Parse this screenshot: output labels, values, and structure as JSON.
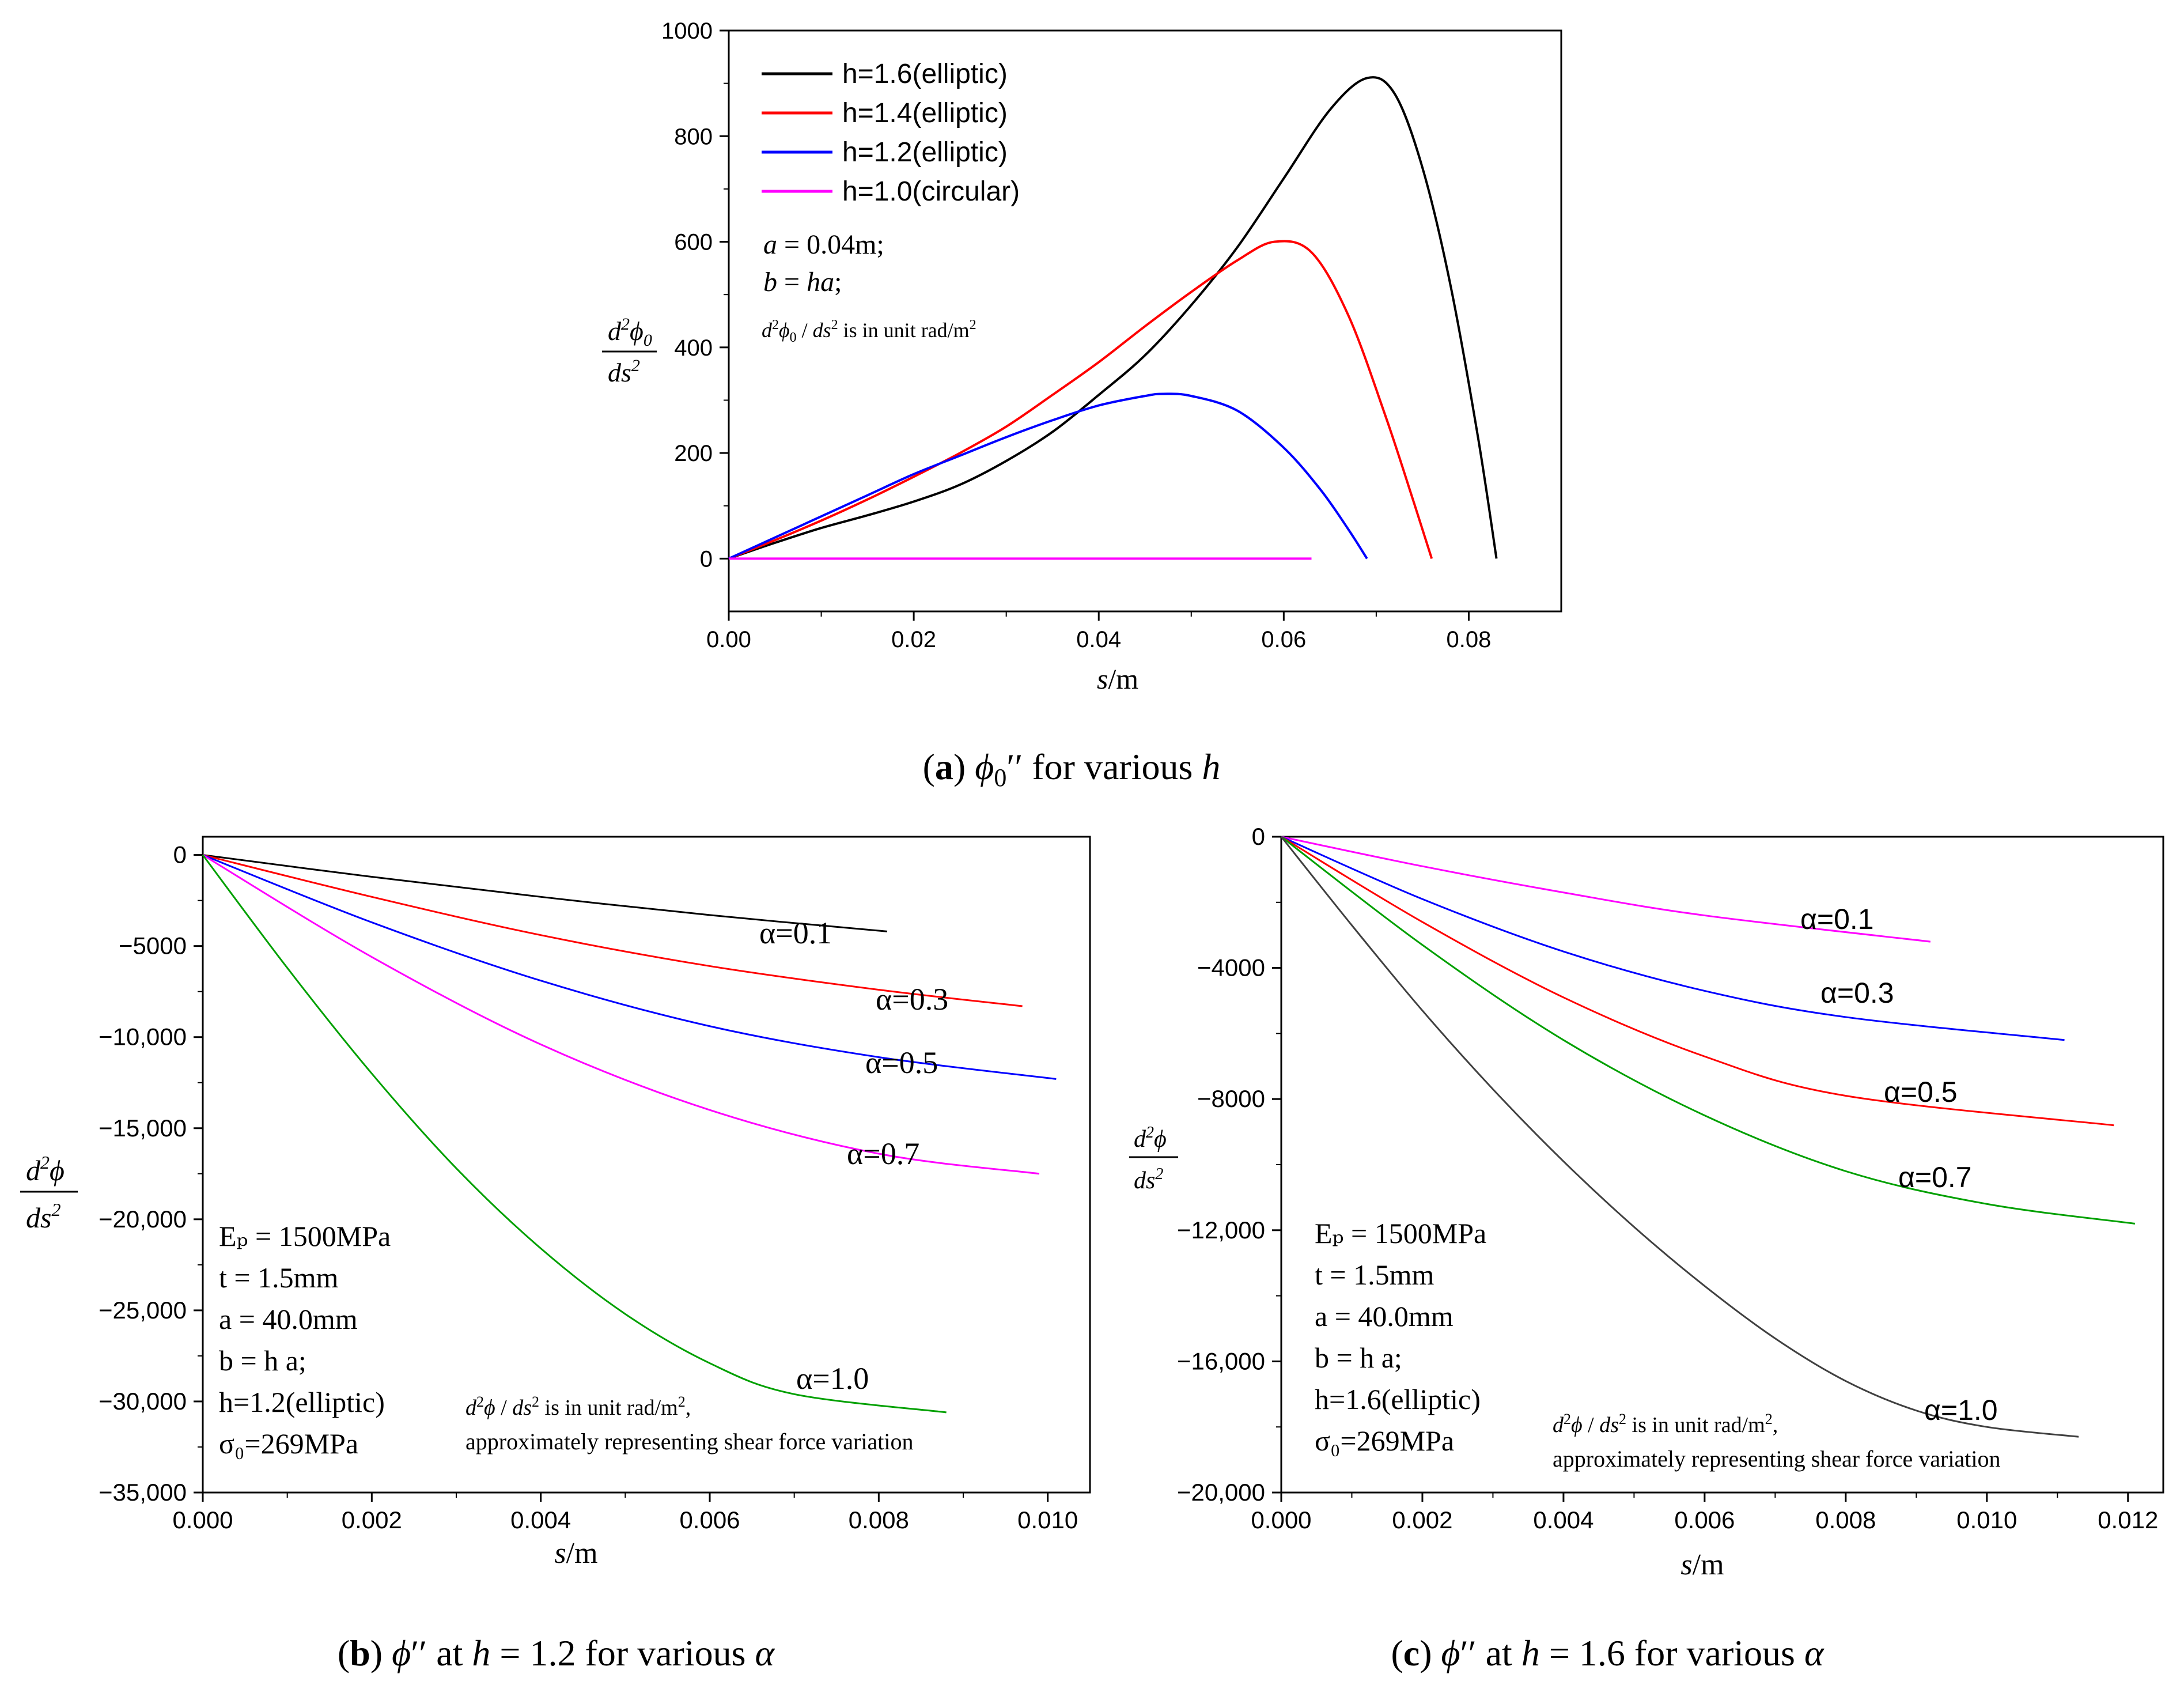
{
  "figure": {
    "captions": {
      "a": {
        "label": "a",
        "symbol": "ϕ₀′′",
        "text": "for various",
        "var": "h"
      },
      "b": {
        "label": "b",
        "symbol": "ϕ′′",
        "text_before": "at",
        "var": "h",
        "text_mid": "= 1.2 for various",
        "var2": "α"
      },
      "c": {
        "label": "c",
        "symbol": "ϕ′′",
        "text_before": "at",
        "var": "h",
        "text_mid": "= 1.6 for various",
        "var2": "α"
      }
    }
  },
  "chart_data": [
    {
      "id": "a",
      "type": "line",
      "xlabel": "s/m",
      "ylabel": "d²ϕ₀/ds²",
      "xlim": [
        0.0,
        0.09
      ],
      "ylim": [
        -100,
        1000
      ],
      "xticks": [
        0.0,
        0.02,
        0.04,
        0.06,
        0.08
      ],
      "xtick_labels": [
        "0.00",
        "0.02",
        "0.04",
        "0.06",
        "0.08"
      ],
      "yticks": [
        0,
        200,
        400,
        600,
        800,
        1000
      ],
      "ytick_labels": [
        "0",
        "200",
        "400",
        "600",
        "800",
        "1000"
      ],
      "legend_position": "top-left",
      "series": [
        {
          "name": "h=1.6(elliptic)",
          "color": "#000000",
          "x": [
            0,
            0.005,
            0.01,
            0.015,
            0.02,
            0.025,
            0.03,
            0.035,
            0.04,
            0.045,
            0.05,
            0.055,
            0.06,
            0.065,
            0.069,
            0.072,
            0.075,
            0.078,
            0.081,
            0.083
          ],
          "y": [
            0,
            30,
            58,
            82,
            108,
            140,
            185,
            240,
            310,
            385,
            480,
            590,
            720,
            850,
            910,
            880,
            740,
            520,
            230,
            0
          ]
        },
        {
          "name": "h=1.4(elliptic)",
          "color": "#ff0000",
          "x": [
            0,
            0.005,
            0.01,
            0.015,
            0.02,
            0.025,
            0.03,
            0.035,
            0.04,
            0.045,
            0.05,
            0.055,
            0.059,
            0.063,
            0.067,
            0.071,
            0.074,
            0.076
          ],
          "y": [
            0,
            35,
            72,
            112,
            155,
            200,
            250,
            310,
            372,
            440,
            505,
            565,
            600,
            580,
            460,
            270,
            110,
            0
          ]
        },
        {
          "name": "h=1.2(elliptic)",
          "color": "#0000ff",
          "x": [
            0,
            0.005,
            0.01,
            0.015,
            0.02,
            0.025,
            0.03,
            0.035,
            0.04,
            0.045,
            0.047,
            0.05,
            0.055,
            0.06,
            0.064,
            0.067,
            0.069
          ],
          "y": [
            0,
            40,
            80,
            120,
            160,
            195,
            230,
            262,
            290,
            308,
            312,
            308,
            280,
            210,
            130,
            55,
            0
          ]
        },
        {
          "name": "h=1.0(circular)",
          "color": "#ff00ff",
          "x": [
            0,
            0.063
          ],
          "y": [
            0,
            0
          ]
        }
      ],
      "annotations": {
        "line1": "a = 0.04m;",
        "line2": "b = ha;",
        "unit_note_sym": "d²ϕ₀ / ds²",
        "unit_note_text": "is in unit rad/m²"
      }
    },
    {
      "id": "b",
      "type": "line",
      "xlabel": "s/m",
      "ylabel": "d²ϕ/ds²",
      "xlim": [
        0.0,
        0.0105
      ],
      "ylim": [
        -35000,
        1000
      ],
      "xticks": [
        0.0,
        0.002,
        0.004,
        0.006,
        0.008,
        0.01
      ],
      "xtick_labels": [
        "0.000",
        "0.002",
        "0.004",
        "0.006",
        "0.008",
        "0.010"
      ],
      "yticks": [
        0,
        -5000,
        -10000,
        -15000,
        -20000,
        -25000,
        -30000,
        -35000
      ],
      "ytick_labels": [
        "0",
        "-5000",
        "-10,000",
        "-15,000",
        "-20,000",
        "-25,000",
        "-30,000",
        "-35,000"
      ],
      "series": [
        {
          "name": "α=0.1",
          "color": "#000000",
          "x": [
            0,
            0.002,
            0.004,
            0.006,
            0.0081
          ],
          "y": [
            0,
            -1200,
            -2300,
            -3300,
            -4200
          ]
        },
        {
          "name": "α=0.3",
          "color": "#ff0000",
          "x": [
            0,
            0.002,
            0.004,
            0.006,
            0.008,
            0.0097
          ],
          "y": [
            0,
            -2300,
            -4400,
            -6100,
            -7400,
            -8300
          ]
        },
        {
          "name": "α=0.5",
          "color": "#0000ff",
          "x": [
            0,
            0.002,
            0.004,
            0.006,
            0.008,
            0.0101
          ],
          "y": [
            0,
            -3700,
            -6900,
            -9400,
            -11100,
            -12300
          ]
        },
        {
          "name": "α=0.7",
          "color": "#ff00ff",
          "x": [
            0,
            0.002,
            0.004,
            0.006,
            0.008,
            0.0099
          ],
          "y": [
            0,
            -5600,
            -10400,
            -14000,
            -16400,
            -17500
          ]
        },
        {
          "name": "α=1.0",
          "color": "#00a000",
          "x": [
            0,
            0.001,
            0.002,
            0.003,
            0.004,
            0.005,
            0.006,
            0.007,
            0.0088
          ],
          "y": [
            0,
            -6200,
            -12000,
            -17200,
            -21600,
            -25200,
            -27900,
            -29600,
            -30600
          ]
        }
      ],
      "annotations": {
        "params": [
          "Eₚ = 1500MPa",
          "t = 1.5mm",
          "a = 40.0mm",
          "b = h a;",
          "h=1.2(elliptic)",
          "σ₀=269MPa"
        ],
        "unit_note_line1_sym": "d²ϕ / ds²",
        "unit_note_line1_text": "is in unit rad/m²,",
        "unit_note_line2": "approximately representing shear force variation"
      }
    },
    {
      "id": "c",
      "type": "line",
      "xlabel": "s/m",
      "ylabel": "d²ϕ/ds²",
      "xlim": [
        0.0,
        0.0125
      ],
      "ylim": [
        -20000,
        0
      ],
      "xticks": [
        0.0,
        0.002,
        0.004,
        0.006,
        0.008,
        0.01,
        0.012
      ],
      "xtick_labels": [
        "0.000",
        "0.002",
        "0.004",
        "0.006",
        "0.008",
        "0.010",
        "0.012"
      ],
      "yticks": [
        0,
        -4000,
        -8000,
        -12000,
        -16000,
        -20000
      ],
      "ytick_labels": [
        "0",
        "-4000",
        "-8000",
        "-12,000",
        "-16,000",
        "-20,000"
      ],
      "series": [
        {
          "name": "α=0.1",
          "color": "#ff00ff",
          "x": [
            0,
            0.002,
            0.004,
            0.006,
            0.0092
          ],
          "y": [
            0,
            -900,
            -1700,
            -2400,
            -3200
          ]
        },
        {
          "name": "α=0.3",
          "color": "#0000ff",
          "x": [
            0,
            0.002,
            0.004,
            0.006,
            0.008,
            0.0111
          ],
          "y": [
            0,
            -1900,
            -3500,
            -4700,
            -5500,
            -6200
          ]
        },
        {
          "name": "α=0.5",
          "color": "#ff0000",
          "x": [
            0,
            0.002,
            0.004,
            0.006,
            0.008,
            0.0118
          ],
          "y": [
            0,
            -2600,
            -4900,
            -6700,
            -7900,
            -8800
          ]
        },
        {
          "name": "α=0.7",
          "color": "#00a000",
          "x": [
            0,
            0.002,
            0.004,
            0.006,
            0.008,
            0.01,
            0.0121
          ],
          "y": [
            0,
            -3300,
            -6200,
            -8500,
            -10200,
            -11200,
            -11800
          ]
        },
        {
          "name": "α=1.0",
          "color": "#404040",
          "x": [
            0,
            0.001,
            0.002,
            0.003,
            0.004,
            0.005,
            0.006,
            0.007,
            0.008,
            0.009,
            0.01,
            0.0113
          ],
          "y": [
            0,
            -2700,
            -5300,
            -7700,
            -9900,
            -11900,
            -13700,
            -15300,
            -16600,
            -17500,
            -18000,
            -18300
          ]
        }
      ],
      "annotations": {
        "params": [
          "Eₚ = 1500MPa",
          "t = 1.5mm",
          "a = 40.0mm",
          "b = h a;",
          "h=1.6(elliptic)",
          "σ₀=269MPa"
        ],
        "unit_note_line1_sym": "d²ϕ / ds²",
        "unit_note_line1_text": "is in unit rad/m²,",
        "unit_note_line2": "approximately representing shear force variation"
      }
    }
  ]
}
